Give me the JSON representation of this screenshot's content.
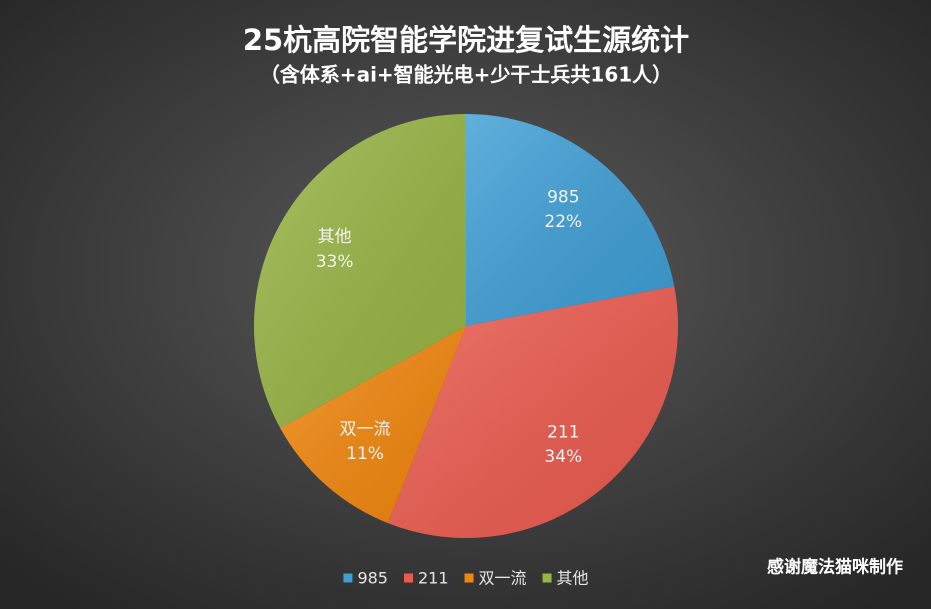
{
  "chart_data": {
    "type": "pie",
    "title": "25杭高院智能学院进复试生源统计",
    "subtitle": "（含体系+ai+智能光电+少干士兵共161人）",
    "categories": [
      "985",
      "211",
      "双一流",
      "其他"
    ],
    "values": [
      22,
      34,
      11,
      33
    ],
    "value_labels": [
      "22%",
      "34%",
      "11%",
      "33%"
    ],
    "colors": [
      "#3e9fd6",
      "#ec5a4e",
      "#f2860c",
      "#98b443"
    ],
    "legend": "bottom",
    "note": "感谢魔法猫咪制作"
  }
}
